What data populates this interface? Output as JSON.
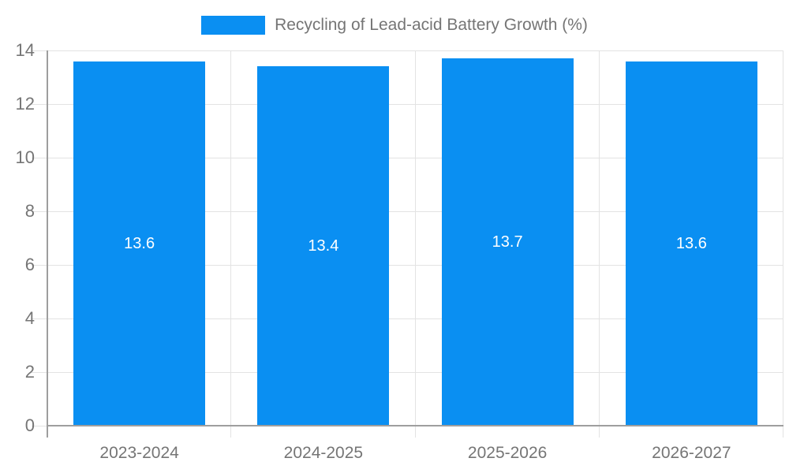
{
  "chart_data": {
    "type": "bar",
    "title": "Recycling of Lead-acid Battery Growth (%)",
    "series_label": "Recycling of Lead-acid Battery Growth (%)",
    "categories": [
      "2023-2024",
      "2024-2025",
      "2025-2026",
      "2026-2027"
    ],
    "values": [
      13.6,
      13.4,
      13.7,
      13.6
    ],
    "value_labels": [
      "13.6",
      "13.4",
      "13.7",
      "13.6"
    ],
    "xlabel": "",
    "ylabel": "",
    "ylim": [
      0,
      14
    ],
    "yticks": [
      0,
      2,
      4,
      6,
      8,
      10,
      12,
      14
    ],
    "grid": "on",
    "legend_position": "top-center",
    "colors": {
      "bar": "#0a8ff2",
      "value_label_text": "#ffffff",
      "axis_text": "#757575",
      "legend_text": "#757575",
      "axis_line": "#9e9e9e",
      "gridline": "#e3e3e3",
      "background": "#ffffff"
    }
  }
}
